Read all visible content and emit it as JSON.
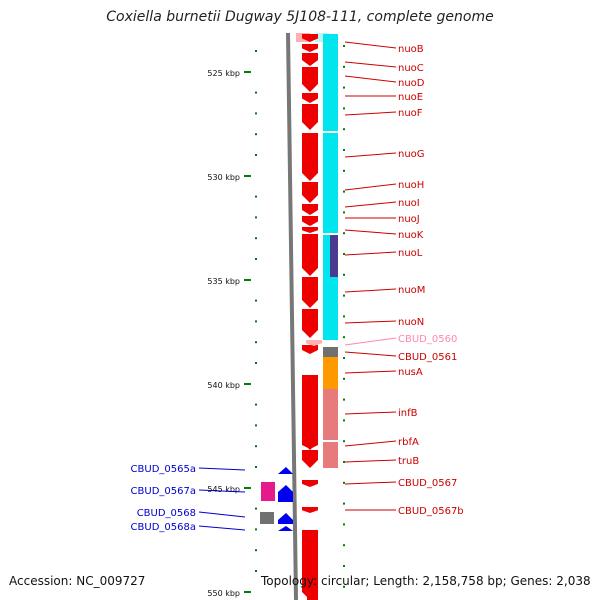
{
  "title": "Coxiella burnetii Dugway 5J108-111, complete genome",
  "footer": {
    "accession": "Accession: NC_009727",
    "topology": "Topology: circular; Length: 2,158,758 bp; Genes: 2,038"
  },
  "colors": {
    "gene_forward": "#ee0000",
    "gene_forward_light": "#ffb0b0",
    "gene_reverse": "#0000ee",
    "cog_cyan": "#00e5ee",
    "cog_dark_blue": "#4b3b8f",
    "cog_gray": "#707070",
    "cog_orange": "#ff9900",
    "cog_rose": "#e77a7a",
    "cog_magenta": "#e6198c",
    "label_forward": "#cc0000",
    "label_pseudo": "#ff88aa",
    "label_reverse": "#0000cc",
    "scale_tick": "#008000",
    "backbone": "#777777"
  },
  "scale": {
    "ticks": [
      "525 kbp",
      "530 kbp",
      "535 kbp",
      "540 kbp",
      "545 kbp",
      "550 kbp"
    ]
  },
  "genes_forward": [
    {
      "label": "nuoB",
      "style": "normal"
    },
    {
      "label": "nuoC",
      "style": "normal"
    },
    {
      "label": "nuoD",
      "style": "normal"
    },
    {
      "label": "nuoE",
      "style": "normal"
    },
    {
      "label": "nuoF",
      "style": "normal"
    },
    {
      "label": "nuoG",
      "style": "normal"
    },
    {
      "label": "nuoH",
      "style": "normal"
    },
    {
      "label": "nuoI",
      "style": "normal"
    },
    {
      "label": "nuoJ",
      "style": "normal"
    },
    {
      "label": "nuoK",
      "style": "normal"
    },
    {
      "label": "nuoL",
      "style": "normal"
    },
    {
      "label": "nuoM",
      "style": "normal"
    },
    {
      "label": "nuoN",
      "style": "normal"
    },
    {
      "label": "CBUD_0560",
      "style": "pseudo"
    },
    {
      "label": "CBUD_0561",
      "style": "normal"
    },
    {
      "label": "nusA",
      "style": "normal"
    },
    {
      "label": "infB",
      "style": "normal"
    },
    {
      "label": "rbfA",
      "style": "normal"
    },
    {
      "label": "truB",
      "style": "normal"
    },
    {
      "label": "CBUD_0567",
      "style": "normal"
    },
    {
      "label": "CBUD_0567b",
      "style": "normal"
    }
  ],
  "genes_reverse": [
    {
      "label": "CBUD_0565a"
    },
    {
      "label": "CBUD_0567a"
    },
    {
      "label": "CBUD_0568"
    },
    {
      "label": "CBUD_0568a"
    }
  ]
}
